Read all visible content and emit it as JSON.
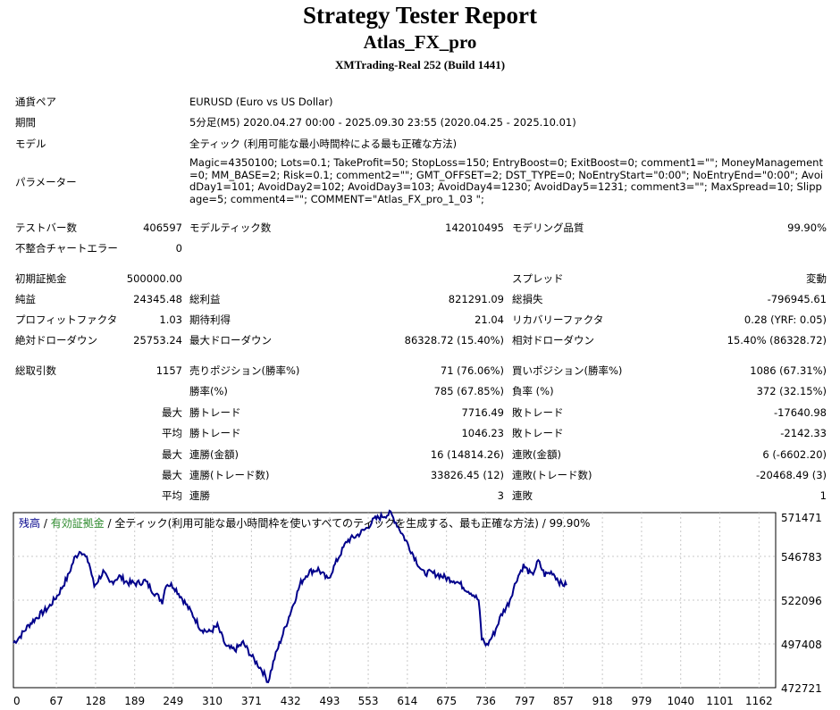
{
  "header": {
    "title": "Strategy Tester Report",
    "ea_name": "Atlas_FX_pro",
    "server": "XMTrading-Real 252 (Build 1441)"
  },
  "info": {
    "symbol_label": "通貨ペア",
    "symbol_value": "EURUSD (Euro vs US Dollar)",
    "period_label": "期間",
    "period_value": "5分足(M5) 2020.04.27 00:00 - 2025.09.30 23:55 (2020.04.25 - 2025.10.01)",
    "model_label": "モデル",
    "model_value": "全ティック (利用可能な最小時間枠による最も正確な方法)",
    "params_label": "パラメーター",
    "params_value": "Magic=4350100; Lots=0.1; TakeProfit=50; StopLoss=150; EntryBoost=0; ExitBoost=0; comment1=\"\"; MoneyManagement=0; MM_BASE=2; Risk=0.1; comment2=\"\"; GMT_OFFSET=2; DST_TYPE=0; NoEntryStart=\"0:00\"; NoEntryEnd=\"0:00\"; AvoidDay1=101; AvoidDay2=102; AvoidDay3=103; AvoidDay4=1230; AvoidDay5=1231; comment3=\"\"; MaxSpread=10; Slippage=5; comment4=\"\"; COMMENT=\"Atlas_FX_pro_1_03 \";"
  },
  "stats": {
    "bars_label": "テストバー数",
    "bars_value": "406597",
    "ticks_label": "モデルティック数",
    "ticks_value": "142010495",
    "quality_label": "モデリング品質",
    "quality_value": "99.90%",
    "mismatch_label": "不整合チャートエラー",
    "mismatch_value": "0",
    "deposit_label": "初期証拠金",
    "deposit_value": "500000.00",
    "spread_label": "スプレッド",
    "spread_value": "変動",
    "net_label": "純益",
    "net_value": "24345.48",
    "gross_profit_label": "総利益",
    "gross_profit_value": "821291.09",
    "gross_loss_label": "総損失",
    "gross_loss_value": "-796945.61",
    "pf_label": "プロフィットファクタ",
    "pf_value": "1.03",
    "payoff_label": "期待利得",
    "payoff_value": "21.04",
    "rf_label": "リカバリーファクタ",
    "rf_value": "0.28 (YRF: 0.05)",
    "abs_dd_label": "絶対ドローダウン",
    "abs_dd_value": "25753.24",
    "max_dd_label": "最大ドローダウン",
    "max_dd_value": "86328.72 (15.40%)",
    "rel_dd_label": "相対ドローダウン",
    "rel_dd_value": "15.40% (86328.72)",
    "trades_label": "総取引数",
    "trades_value": "1157",
    "short_label": "売りポジション(勝率%)",
    "short_value": "71 (76.06%)",
    "long_label": "買いポジション(勝率%)",
    "long_value": "1086 (67.31%)",
    "win_rate_label": "勝率(%)",
    "win_rate_value": "785 (67.85%)",
    "loss_rate_label": "負率 (%)",
    "loss_rate_value": "372 (32.15%)",
    "max_label": "最大",
    "avg_label": "平均",
    "largest_win_label": "勝トレード",
    "largest_win_value": "7716.49",
    "largest_loss_label": "敗トレード",
    "largest_loss_value": "-17640.98",
    "avg_win_label": "勝トレード",
    "avg_win_value": "1046.23",
    "avg_loss_label": "敗トレード",
    "avg_loss_value": "-2142.33",
    "cons_win_amt_label": "連勝(金額)",
    "cons_win_amt_value": "16 (14814.26)",
    "cons_loss_amt_label": "連敗(金額)",
    "cons_loss_amt_value": "6 (-6602.20)",
    "cons_win_trd_label": "連勝(トレード数)",
    "cons_win_trd_value": "33826.45 (12)",
    "cons_loss_trd_label": "連敗(トレード数)",
    "cons_loss_trd_value": "-20468.49 (3)",
    "avg_cons_win_label": "連勝",
    "avg_cons_win_value": "3",
    "avg_cons_loss_label": "連敗",
    "avg_cons_loss_value": "1"
  },
  "chart_data": {
    "type": "line",
    "legend": {
      "balance": "残高",
      "sep1": " / ",
      "equity": "有効証拠金",
      "sep2": " / ",
      "model": "全ティック(利用可能な最小時間枠を使いすべてのティックを生成する、最も正確な方法)",
      "sep3": " / ",
      "quality": "99.90%"
    },
    "colors": {
      "balance": "#00008b",
      "equity": "#2e8b2e",
      "grid": "#c8c8c8"
    },
    "x_ticks": [
      "0",
      "67",
      "128",
      "189",
      "249",
      "310",
      "371",
      "432",
      "493",
      "553",
      "614",
      "675",
      "736",
      "797",
      "857",
      "918",
      "979",
      "1040",
      "1101",
      "1162"
    ],
    "y_ticks": [
      "571471",
      "546783",
      "522096",
      "497408",
      "472721"
    ],
    "xlim": [
      0,
      1188
    ],
    "ylim": [
      472721,
      571471
    ],
    "series": [
      {
        "values": [
          [
            0,
            498000
          ],
          [
            10,
            501500
          ],
          [
            25,
            508500
          ],
          [
            40,
            513500
          ],
          [
            55,
            518000
          ],
          [
            70,
            525500
          ],
          [
            85,
            535500
          ],
          [
            95,
            545500
          ],
          [
            105,
            550500
          ],
          [
            118,
            543000
          ],
          [
            126,
            530000
          ],
          [
            140,
            538000
          ],
          [
            150,
            531500
          ],
          [
            165,
            535500
          ],
          [
            178,
            532000
          ],
          [
            193,
            531500
          ],
          [
            205,
            533000
          ],
          [
            218,
            527000
          ],
          [
            232,
            521500
          ],
          [
            238,
            531500
          ],
          [
            250,
            530000
          ],
          [
            265,
            522000
          ],
          [
            280,
            513500
          ],
          [
            292,
            506000
          ],
          [
            305,
            504000
          ],
          [
            318,
            507500
          ],
          [
            332,
            495500
          ],
          [
            345,
            494000
          ],
          [
            358,
            498000
          ],
          [
            373,
            489500
          ],
          [
            387,
            483000
          ],
          [
            397,
            476200
          ],
          [
            407,
            489500
          ],
          [
            420,
            503000
          ],
          [
            435,
            518500
          ],
          [
            448,
            532000
          ],
          [
            460,
            538000
          ],
          [
            475,
            539500
          ],
          [
            490,
            533500
          ],
          [
            505,
            545000
          ],
          [
            520,
            555500
          ],
          [
            535,
            558500
          ],
          [
            550,
            562500
          ],
          [
            562,
            567500
          ],
          [
            575,
            569500
          ],
          [
            588,
            571000
          ],
          [
            600,
            563500
          ],
          [
            612,
            555500
          ],
          [
            625,
            546500
          ],
          [
            638,
            537500
          ],
          [
            650,
            537500
          ],
          [
            662,
            536500
          ],
          [
            675,
            534500
          ],
          [
            690,
            533000
          ],
          [
            705,
            528500
          ],
          [
            715,
            526000
          ],
          [
            725,
            522000
          ],
          [
            730,
            500500
          ],
          [
            738,
            496500
          ],
          [
            750,
            504000
          ],
          [
            760,
            513500
          ],
          [
            772,
            520500
          ],
          [
            785,
            534500
          ],
          [
            795,
            541500
          ],
          [
            808,
            536000
          ],
          [
            818,
            544000
          ],
          [
            828,
            536500
          ],
          [
            840,
            538000
          ],
          [
            853,
            531500
          ],
          [
            862,
            530500
          ]
        ]
      }
    ]
  }
}
